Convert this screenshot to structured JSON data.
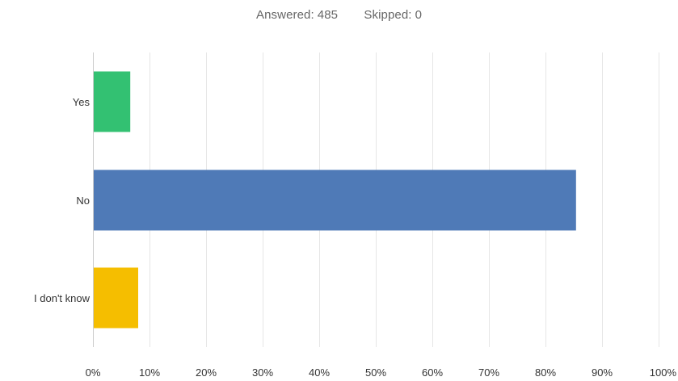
{
  "summary": {
    "answered_label": "Answered:",
    "answered_value": "485",
    "skipped_label": "Skipped:",
    "skipped_value": "0"
  },
  "chart_data": {
    "type": "bar",
    "orientation": "horizontal",
    "categories": [
      "Yes",
      "No",
      "I don't know"
    ],
    "values": [
      6.6,
      85.4,
      8.0
    ],
    "colors": [
      "#33c172",
      "#4f7ab7",
      "#f5be00"
    ],
    "xlim": [
      0,
      100
    ],
    "ticks": [
      0,
      10,
      20,
      30,
      40,
      50,
      60,
      70,
      80,
      90,
      100
    ],
    "tick_labels": [
      "0%",
      "10%",
      "20%",
      "30%",
      "40%",
      "50%",
      "60%",
      "70%",
      "80%",
      "90%",
      "100%"
    ],
    "grid": true,
    "grid_color": "#e6e6e6",
    "axis_color": "#cccccc"
  }
}
